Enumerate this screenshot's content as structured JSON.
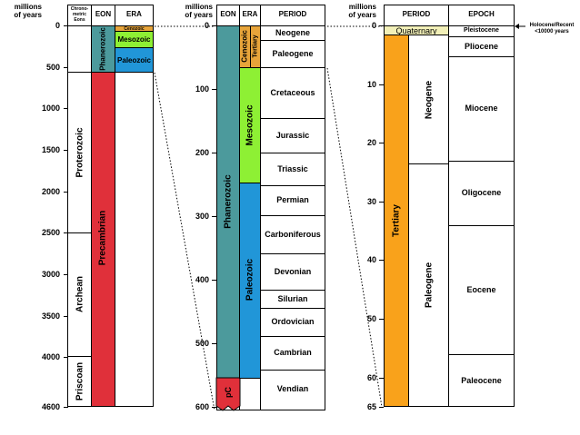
{
  "units_label": [
    "millions",
    "of years"
  ],
  "panel1": {
    "headers": {
      "chronometric": "Chrono-metric Eons",
      "eon": "EON",
      "era": "ERA"
    },
    "ticks": [
      "0",
      "500",
      "1000",
      "1500",
      "2000",
      "2500",
      "3000",
      "3500",
      "4000",
      "4600"
    ],
    "chronometric_eons": [
      "Proterozoic",
      "Archean",
      "Priscoan"
    ],
    "eons": [
      "Phanerozoic",
      "Precambrian"
    ],
    "eras": [
      "Cenozoic",
      "Mesozoic",
      "Paleozoic"
    ]
  },
  "panel2": {
    "headers": {
      "eon": "EON",
      "era": "ERA",
      "period": "PERIOD"
    },
    "ticks": [
      "0",
      "100",
      "200",
      "300",
      "400",
      "500",
      "600"
    ],
    "eons": [
      "Phanerozoic",
      "pC"
    ],
    "eras": [
      "Cenozoic",
      "Mesozoic",
      "Paleozoic"
    ],
    "subperiod": "Tertiary",
    "periods": [
      "Neogene",
      "Paleogene",
      "Cretaceous",
      "Jurassic",
      "Triassic",
      "Permian",
      "Carboniferous",
      "Devonian",
      "Silurian",
      "Ordovician",
      "Cambrian",
      "Vendian"
    ]
  },
  "panel3": {
    "headers": {
      "period": "PERIOD",
      "epoch": "EPOCH"
    },
    "ticks": [
      "0",
      "10",
      "20",
      "30",
      "40",
      "50",
      "60",
      "65"
    ],
    "periods": [
      "Quaternary",
      "Tertiary"
    ],
    "subperiods": [
      "Neogene",
      "Paleogene"
    ],
    "epochs": [
      "Pleistocene",
      "Pliocene",
      "Miocene",
      "Oligocene",
      "Eocene",
      "Paleocene"
    ],
    "holocene_note": [
      "Holocene/Recent",
      "<10000 years"
    ]
  },
  "colors": {
    "cenozoic": "#e7a43a",
    "mesozoic": "#8ef034",
    "paleozoic": "#2196d8",
    "phanerozoic": "#4c9a9c",
    "precambrian": "#e0303a",
    "quaternary": "#f2f0b8",
    "tertiary": "#f9a21b"
  }
}
